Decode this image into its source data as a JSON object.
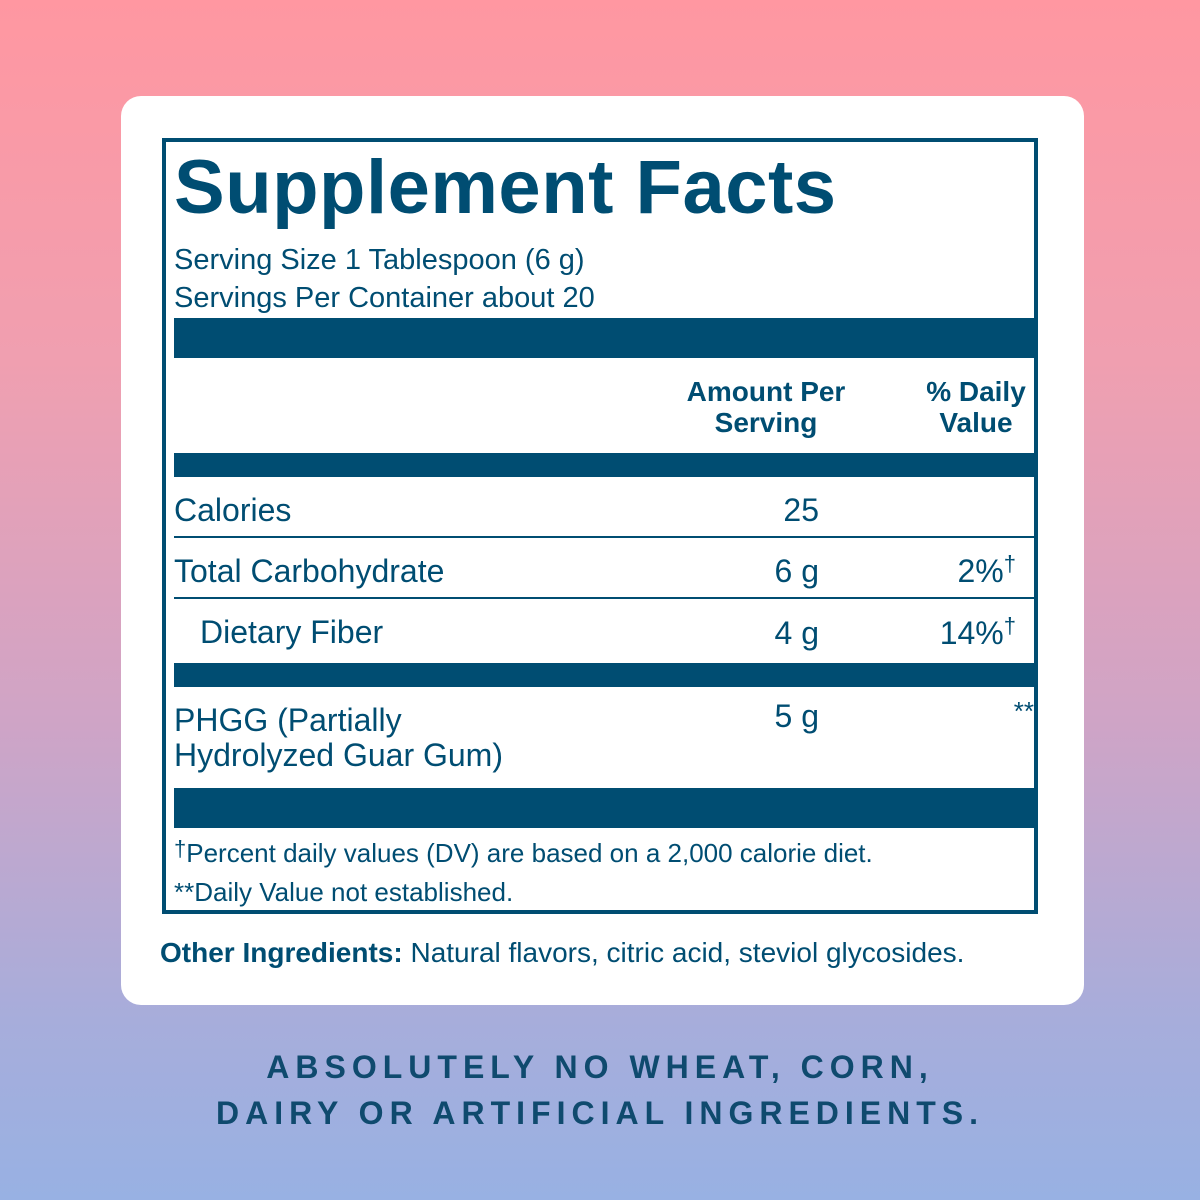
{
  "panel": {
    "title": "Supplement Facts",
    "serving_size": "Serving Size 1 Tablespoon (6 g)",
    "servings_per_container": "Servings Per Container about 20",
    "col_amount_line1": "Amount Per",
    "col_amount_line2": "Serving",
    "col_dv_line1": "% Daily",
    "col_dv_line2": "Value",
    "rows": [
      {
        "name": "Calories",
        "amount": "25",
        "dv": ""
      },
      {
        "name": "Total Carbohydrate",
        "amount": "6 g",
        "dv": "2%"
      },
      {
        "name": "Dietary Fiber",
        "amount": "4 g",
        "dv": "14%"
      },
      {
        "name_line1": "PHGG (Partially",
        "name_line2": "Hydrolyzed Guar Gum)",
        "amount": "5 g",
        "dv": "**"
      }
    ],
    "dagger": "†",
    "footnote1": "Percent daily values (DV) are based on a 2,000 calorie diet.",
    "footnote2": "**Daily Value not established."
  },
  "other_ingredients": {
    "label": "Other Ingredients:",
    "text": "Natural flavors, citric acid, steviol glycosides."
  },
  "claim": {
    "line1": "ABSOLUTELY NO WHEAT, CORN,",
    "line2": "DAIRY OR ARTIFICIAL INGREDIENTS."
  },
  "colors": {
    "brand_blue": "#004d72",
    "bg_top": "#ff97a1",
    "bg_bottom": "#98b1e3"
  }
}
